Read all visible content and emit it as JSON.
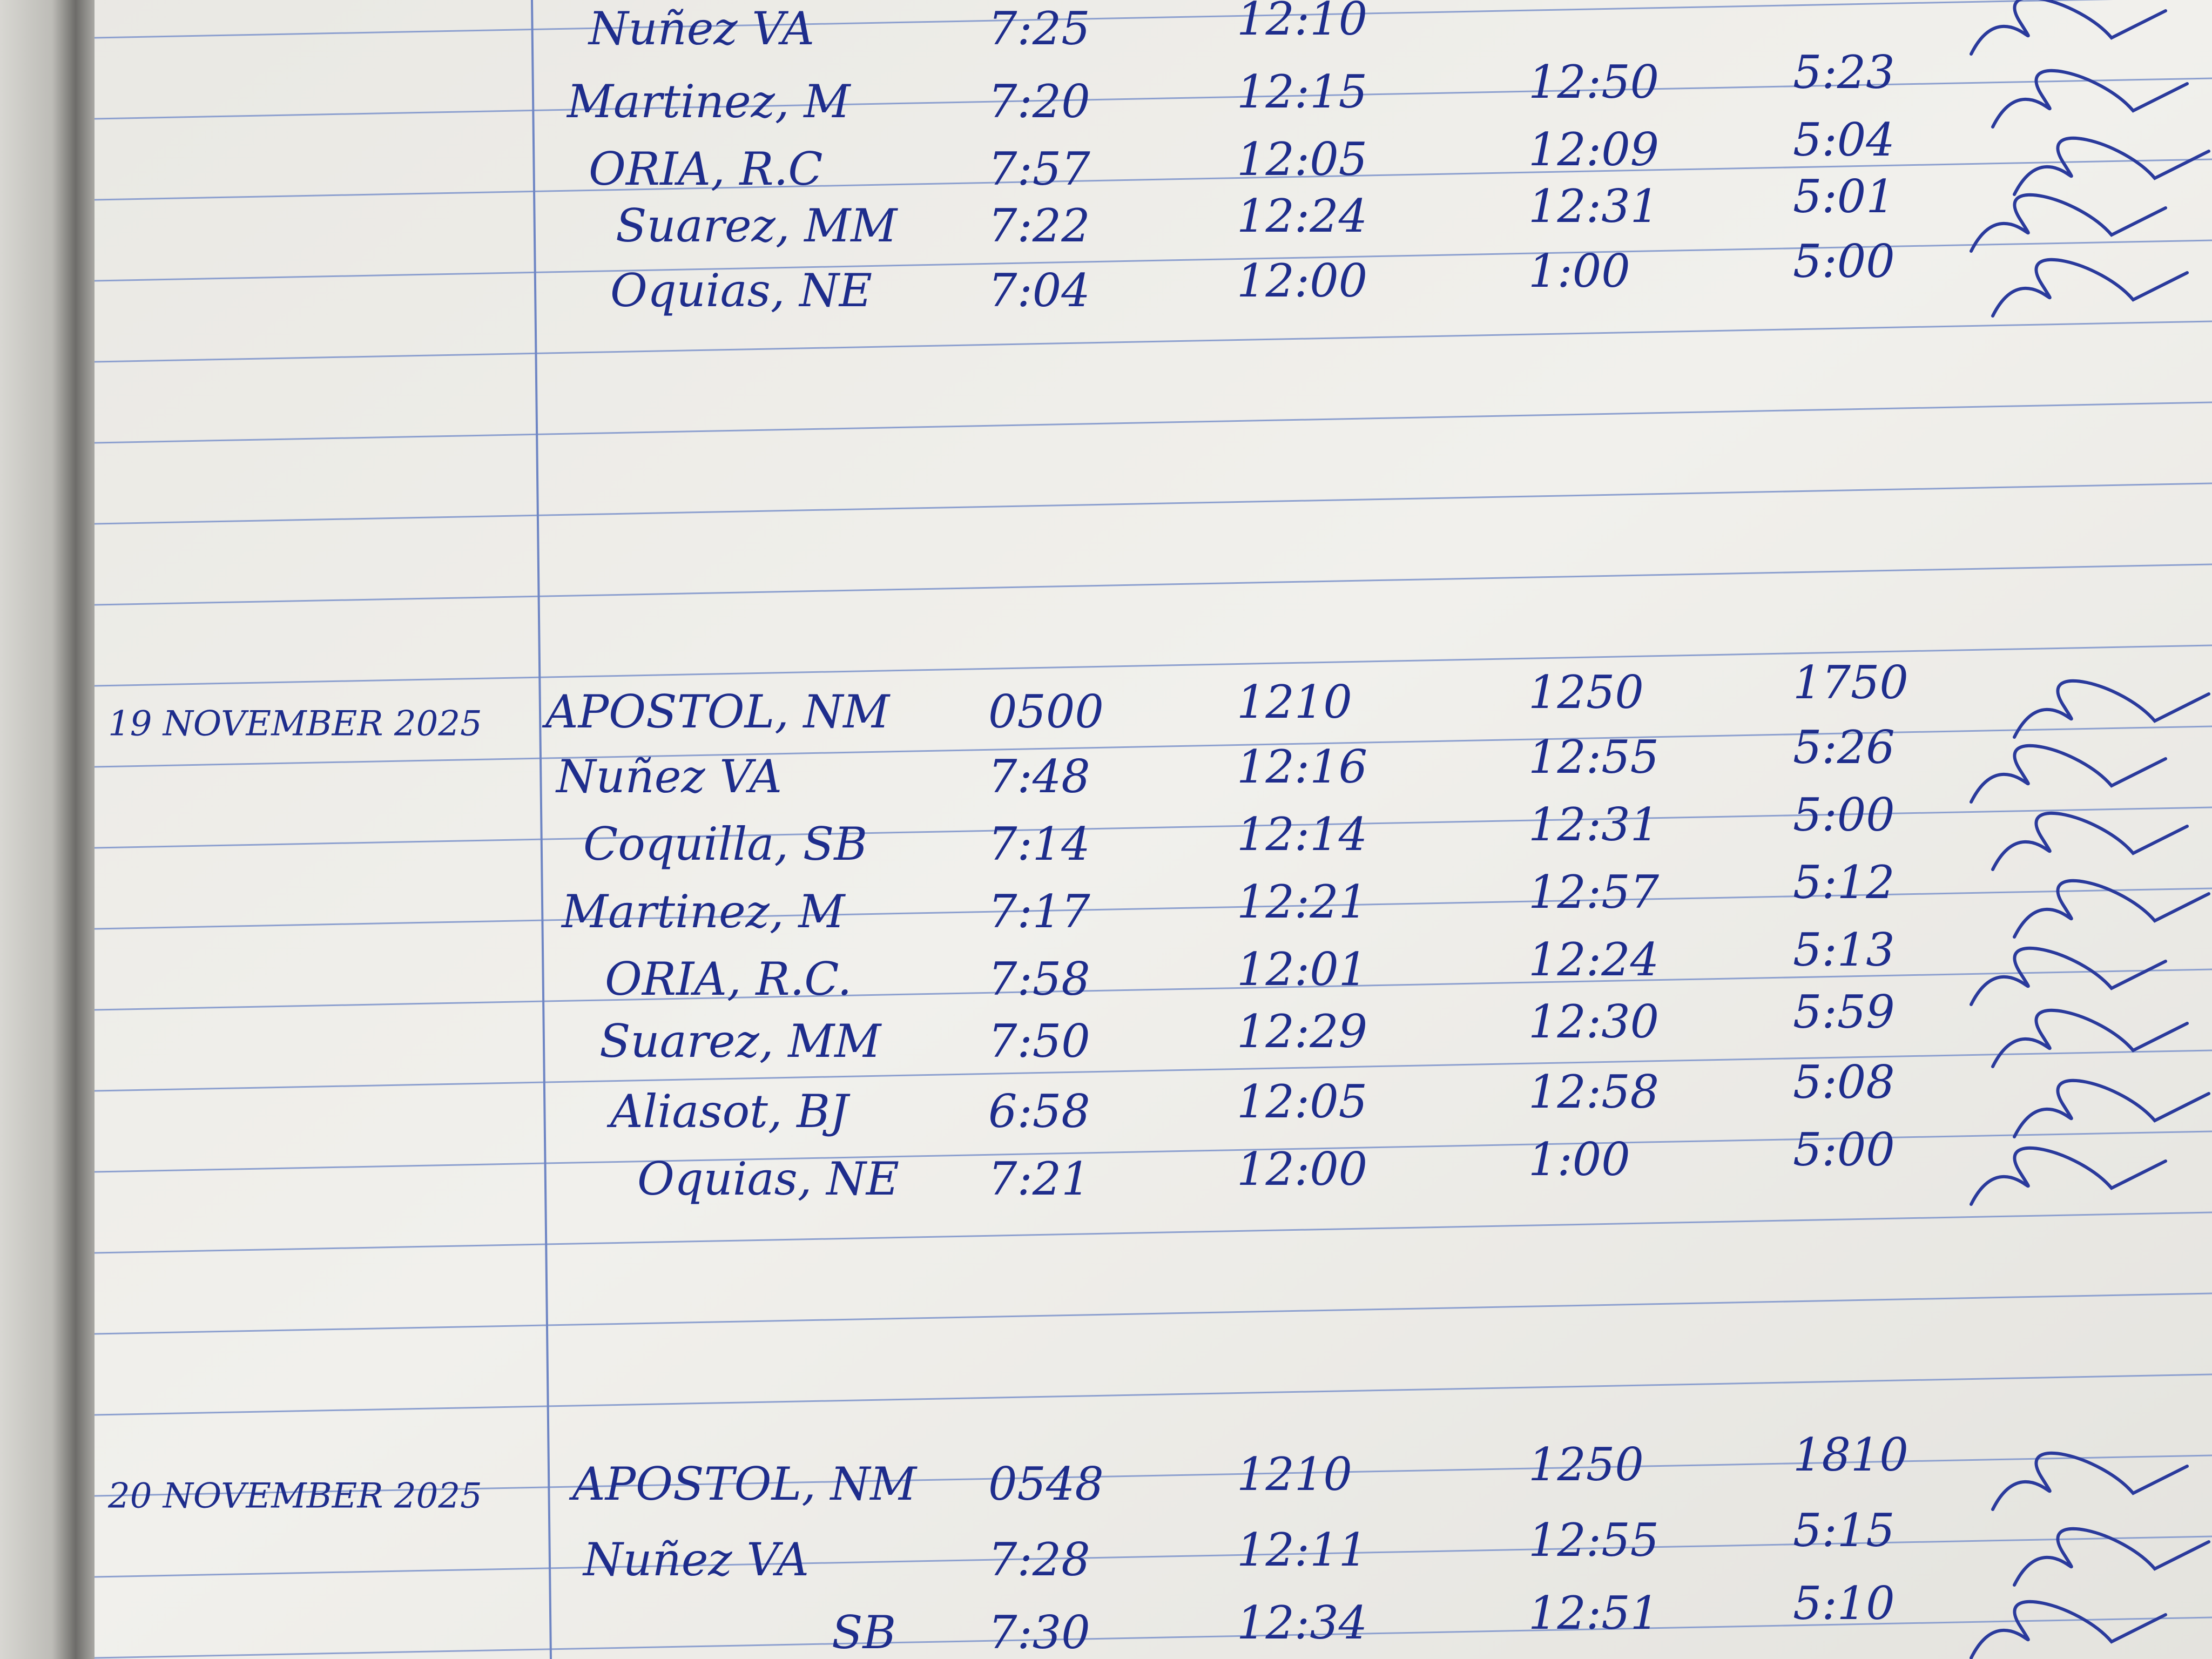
{
  "sections": [
    {
      "rows": [
        {
          "name": "Nuñez VA",
          "times": [
            "7:25",
            "12:10"
          ]
        },
        {
          "name": "Martinez, M",
          "times": [
            "7:20",
            "12:15",
            "12:50",
            "5:23"
          ]
        },
        {
          "name": "ORIA, R.C",
          "times": [
            "7:57",
            "12:05",
            "12:09",
            "5:04"
          ]
        },
        {
          "name": "Suarez, MM",
          "times": [
            "7:22",
            "12:24",
            "12:31",
            "5:01"
          ]
        },
        {
          "name": "Oquias, NE",
          "times": [
            "7:04",
            "12:00",
            "1:00",
            "5:00"
          ]
        }
      ]
    },
    {
      "date": "19 NOVEMBER 2025",
      "rows": [
        {
          "name": "APOSTOL, NM",
          "times": [
            "0500",
            "1210",
            "1250",
            "1750"
          ]
        },
        {
          "name": "Nuñez VA",
          "times": [
            "7:48",
            "12:16",
            "12:55",
            "5:26"
          ]
        },
        {
          "name": "Coquilla, SB",
          "times": [
            "7:14",
            "12:14",
            "12:31",
            "5:00"
          ]
        },
        {
          "name": "Martinez, M",
          "times": [
            "7:17",
            "12:21",
            "12:57",
            "5:12"
          ]
        },
        {
          "name": "ORIA, R.C.",
          "times": [
            "7:58",
            "12:01",
            "12:24",
            "5:13"
          ]
        },
        {
          "name": "Suarez, MM",
          "times": [
            "7:50",
            "12:29",
            "12:30",
            "5:59"
          ]
        },
        {
          "name": "Aliasot, BJ",
          "times": [
            "6:58",
            "12:05",
            "12:58",
            "5:08"
          ]
        },
        {
          "name": "Oquias, NE",
          "times": [
            "7:21",
            "12:00",
            "1:00",
            "5:00"
          ]
        }
      ]
    },
    {
      "date": "20 NOVEMBER 2025",
      "rows": [
        {
          "name": "APOSTOL, NM",
          "times": [
            "0548",
            "1210",
            "1250",
            "1810"
          ]
        },
        {
          "name": "Nuñez VA",
          "times": [
            "7:28",
            "12:11",
            "12:55",
            "5:15"
          ]
        },
        {
          "name": "SB",
          "times": [
            "7:30",
            "12:34",
            "12:51",
            "5:10"
          ]
        }
      ]
    }
  ]
}
